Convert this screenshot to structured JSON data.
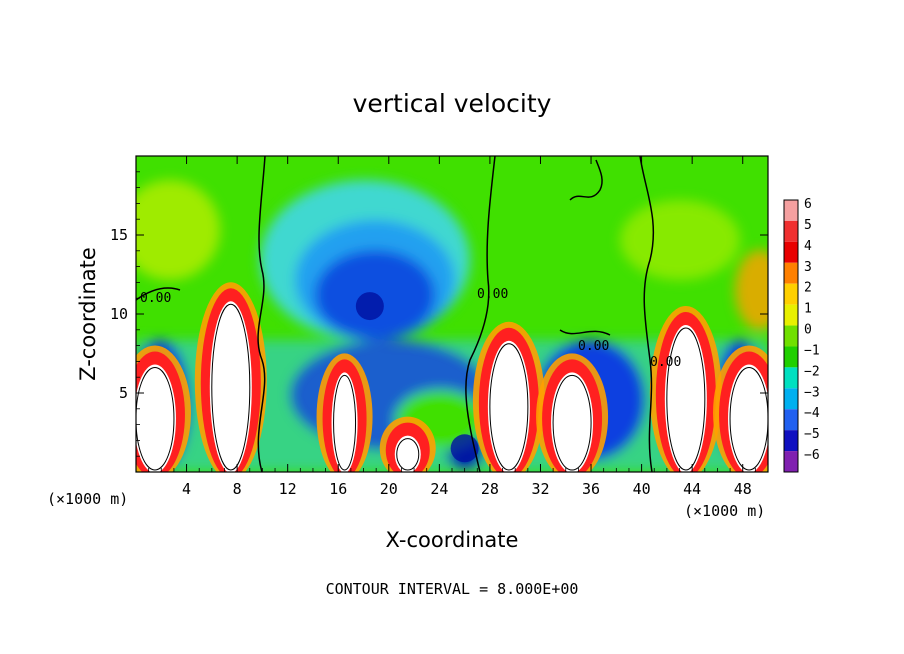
{
  "chart_data": {
    "type": "heatmap",
    "title": "vertical velocity",
    "xlabel": "X-coordinate",
    "ylabel": "Z-coordinate",
    "x_unit": "(×1000 m)",
    "x_unit_right": "(×1000 m)",
    "xlim": [
      0,
      50
    ],
    "ylim": [
      0,
      20
    ],
    "x_ticks": [
      4,
      8,
      12,
      16,
      20,
      24,
      28,
      32,
      36,
      40,
      44,
      48
    ],
    "x_tick_labels": [
      "4",
      "8",
      "12",
      "16",
      "20",
      "24",
      "28",
      "32",
      "36",
      "40",
      "44",
      "48"
    ],
    "y_ticks": [
      5,
      10,
      15
    ],
    "y_tick_labels": [
      "5",
      "10",
      "15"
    ],
    "colorbar_levels": [
      6,
      5,
      4,
      3,
      2,
      1,
      0,
      -1,
      -2,
      -3,
      -4,
      -5,
      -6
    ],
    "colorbar_labels": [
      "6",
      "5",
      "4",
      "3",
      "2",
      "1",
      "0",
      "−1",
      "−2",
      "−3",
      "−4",
      "−5",
      "−6"
    ],
    "colorbar_colors": [
      "#f5a0a0",
      "#f03030",
      "#e80000",
      "#ff8000",
      "#ffd000",
      "#e8f000",
      "#70e000",
      "#20d000",
      "#00e0c0",
      "#00b0f0",
      "#2060f0",
      "#1010c0",
      "#8020b0"
    ],
    "contour_labels": [
      "0.00",
      "0.00",
      "0.00",
      "0.00"
    ],
    "annotation": "CONTOUR INTERVAL = 8.000E+00",
    "updrafts": [
      {
        "x": 1.5,
        "z_top": 7.5,
        "strength": 6
      },
      {
        "x": 7.5,
        "z_top": 11.5,
        "strength": 6
      },
      {
        "x": 16.5,
        "z_top": 7,
        "strength": 5
      },
      {
        "x": 21.5,
        "z_top": 3,
        "strength": 4
      },
      {
        "x": 29.5,
        "z_top": 9,
        "strength": 6
      },
      {
        "x": 34.5,
        "z_top": 7,
        "strength": 6
      },
      {
        "x": 43.5,
        "z_top": 10,
        "strength": 6
      },
      {
        "x": 48.5,
        "z_top": 7.5,
        "strength": 6
      }
    ],
    "downdrafts": [
      {
        "x": 18.5,
        "z": 10.5,
        "strength": -4.5
      },
      {
        "x": 26,
        "z": 1.5,
        "strength": -4.5
      }
    ]
  }
}
